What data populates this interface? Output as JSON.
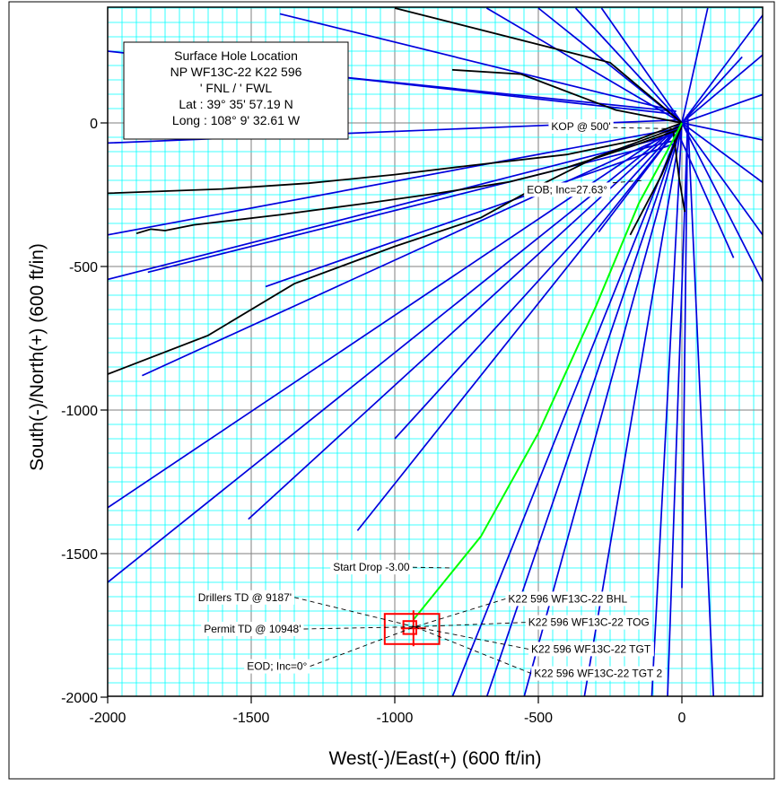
{
  "chart_data": {
    "type": "line",
    "title": "",
    "xlabel": "West(-)/East(+) (600 ft/in)",
    "ylabel": "South(-)/North(+) (600 ft/in)",
    "xlim": [
      -2000,
      280
    ],
    "ylim": [
      -2000,
      400
    ],
    "x_ticks": [
      -2000,
      -1500,
      -1000,
      -500,
      0
    ],
    "y_ticks": [
      -2000,
      -1500,
      -1000,
      -500,
      0
    ],
    "x_tick_labels": [
      "-2000",
      "-1500",
      "-1000",
      "-500",
      "0"
    ],
    "y_tick_labels": [
      "-2000",
      "-1500",
      "-1000",
      "-500",
      "0"
    ],
    "grid": true,
    "grid_color": "#00ffff",
    "offset_well_color": "#0000dd",
    "offset_well_black_color": "#000000",
    "plan_color": "#00ff00",
    "target_color": "#ff0000",
    "info_box": {
      "lines": [
        "Surface Hole Location",
        "NP WF13C-22 K22 596",
        "' FNL / ' FWL",
        "Lat :  39° 35' 57.19 N",
        "Long :  108° 9' 32.61 W"
      ]
    },
    "annotations": [
      {
        "text": "KOP @ 500'",
        "x": -455,
        "y": -25
      },
      {
        "text": "EOB; Inc=27.63°",
        "x": -540,
        "y": -245
      },
      {
        "text": "Start Drop -3.00",
        "x": -1215,
        "y": -1560
      },
      {
        "text": "Drillers TD @ 9187'",
        "x": -1685,
        "y": -1665
      },
      {
        "text": "Permit TD @ 10948'",
        "x": -1665,
        "y": -1775
      },
      {
        "text": "EOD; Inc=0°",
        "x": -1515,
        "y": -1905
      },
      {
        "text": "K22 596 WF13C-22 BHL",
        "x": -605,
        "y": -1670
      },
      {
        "text": "K22 596 WF13C-22 TOG",
        "x": -535,
        "y": -1752
      },
      {
        "text": "K22 596 WF13C-22 TGT",
        "x": -525,
        "y": -1845
      },
      {
        "text": "K22 596 WF13C-22 TGT 2",
        "x": -515,
        "y": -1930
      }
    ],
    "plan_well": {
      "name": "",
      "x": [
        0,
        -20,
        -150,
        -300,
        -500,
        -700,
        -935
      ],
      "y": [
        0,
        -40,
        -280,
        -640,
        -1080,
        -1440,
        -1730
      ]
    },
    "targets": [
      {
        "x": [
          -1035,
          -845
        ],
        "y": [
          -1710,
          -1815
        ]
      },
      {
        "x": [
          -970,
          -925
        ],
        "y": [
          -1735,
          -1780
        ]
      }
    ],
    "offset_wells": [
      {
        "color": "blue",
        "x": [
          0,
          -2000
        ],
        "y": [
          0,
          -1600
        ]
      },
      {
        "color": "blue",
        "x": [
          0,
          -2000
        ],
        "y": [
          0,
          -1340
        ]
      },
      {
        "color": "blue",
        "x": [
          -20,
          -1880
        ],
        "y": [
          -30,
          -880
        ]
      },
      {
        "color": "blue",
        "x": [
          -20,
          -2000
        ],
        "y": [
          -40,
          -545
        ]
      },
      {
        "color": "blue",
        "x": [
          -20,
          -2000
        ],
        "y": [
          -20,
          -390
        ]
      },
      {
        "color": "blue",
        "x": [
          -20,
          -2000
        ],
        "y": [
          10,
          -70
        ]
      },
      {
        "color": "blue",
        "x": [
          -20,
          -2000
        ],
        "y": [
          30,
          250
        ]
      },
      {
        "color": "blue",
        "x": [
          -20,
          -1380
        ],
        "y": [
          40,
          180
        ]
      },
      {
        "color": "blue",
        "x": [
          -20,
          -1400
        ],
        "y": [
          40,
          380
        ]
      },
      {
        "color": "blue",
        "x": [
          -20,
          -1450
        ],
        "y": [
          -70,
          -570
        ]
      },
      {
        "color": "blue",
        "x": [
          -20,
          -1860
        ],
        "y": [
          -60,
          -520
        ]
      },
      {
        "color": "blue",
        "x": [
          0,
          -1000
        ],
        "y": [
          0,
          -1100
        ]
      },
      {
        "color": "blue",
        "x": [
          0,
          -1130
        ],
        "y": [
          0,
          -1420
        ]
      },
      {
        "color": "blue",
        "x": [
          0,
          -1510
        ],
        "y": [
          0,
          -1380
        ]
      },
      {
        "color": "blue",
        "x": [
          0,
          -800
        ],
        "y": [
          0,
          -2000
        ]
      },
      {
        "color": "blue",
        "x": [
          0,
          -680
        ],
        "y": [
          0,
          -2000
        ]
      },
      {
        "color": "blue",
        "x": [
          0,
          -550
        ],
        "y": [
          0,
          -2000
        ]
      },
      {
        "color": "blue",
        "x": [
          0,
          -340
        ],
        "y": [
          0,
          -2000
        ]
      },
      {
        "color": "blue",
        "x": [
          0,
          -105
        ],
        "y": [
          0,
          -2000
        ]
      },
      {
        "color": "blue",
        "x": [
          0,
          -290
        ],
        "y": [
          0,
          -380
        ]
      },
      {
        "color": "blue",
        "x": [
          -20,
          180
        ],
        "y": [
          -20,
          -470
        ]
      },
      {
        "color": "blue",
        "x": [
          0,
          285
        ],
        "y": [
          0,
          -560
        ]
      },
      {
        "color": "blue",
        "x": [
          0,
          285
        ],
        "y": [
          0,
          -395
        ]
      },
      {
        "color": "blue",
        "x": [
          0,
          285
        ],
        "y": [
          0,
          -210
        ]
      },
      {
        "color": "blue",
        "x": [
          0,
          285
        ],
        "y": [
          0,
          -60
        ]
      },
      {
        "color": "blue",
        "x": [
          0,
          285
        ],
        "y": [
          0,
          100
        ]
      },
      {
        "color": "blue",
        "x": [
          0,
          285
        ],
        "y": [
          0,
          240
        ]
      },
      {
        "color": "blue",
        "x": [
          0,
          285
        ],
        "y": [
          0,
          380
        ]
      },
      {
        "color": "blue",
        "x": [
          0,
          90
        ],
        "y": [
          0,
          400
        ]
      },
      {
        "color": "blue",
        "x": [
          0,
          -280
        ],
        "y": [
          0,
          400
        ]
      },
      {
        "color": "blue",
        "x": [
          0,
          -370
        ],
        "y": [
          0,
          400
        ]
      },
      {
        "color": "blue",
        "x": [
          0,
          -500
        ],
        "y": [
          0,
          400
        ]
      },
      {
        "color": "blue",
        "x": [
          0,
          -680
        ],
        "y": [
          0,
          400
        ]
      },
      {
        "color": "blue",
        "x": [
          20,
          110
        ],
        "y": [
          30,
          -2000
        ]
      },
      {
        "color": "blue",
        "x": [
          20,
          0
        ],
        "y": [
          30,
          -1620
        ]
      },
      {
        "color": "blue",
        "x": [
          20,
          -50
        ],
        "y": [
          0,
          -2000
        ]
      },
      {
        "color": "blue",
        "x": [
          0,
          210
        ],
        "y": [
          0,
          230
        ]
      },
      {
        "color": "black",
        "x": [
          0,
          -160,
          -400,
          -750,
          -1000,
          -1300,
          -1600,
          -2000
        ],
        "y": [
          0,
          -60,
          -110,
          -150,
          -180,
          -210,
          -230,
          -245
        ]
      },
      {
        "color": "black",
        "x": [
          0,
          -200,
          -400,
          -600,
          -850,
          -1100,
          -1400,
          -1700,
          -1800,
          -1850,
          -1900
        ],
        "y": [
          -20,
          -90,
          -155,
          -205,
          -245,
          -280,
          -320,
          -355,
          -375,
          -370,
          -385
        ]
      },
      {
        "color": "black",
        "x": [
          0,
          -300,
          -500,
          -700,
          -1000,
          -1350,
          -1650,
          -2000
        ],
        "y": [
          -10,
          -120,
          -220,
          -330,
          -430,
          -560,
          -740,
          -875
        ]
      },
      {
        "color": "black",
        "x": [
          0,
          -230,
          -350,
          -560,
          -800
        ],
        "y": [
          0,
          45,
          90,
          170,
          185
        ]
      },
      {
        "color": "black",
        "x": [
          0,
          -70,
          -180
        ],
        "y": [
          -10,
          -180,
          -390
        ]
      },
      {
        "color": "black",
        "x": [
          -30,
          -10,
          10
        ],
        "y": [
          -30,
          -190,
          -310
        ]
      },
      {
        "color": "black",
        "x": [
          0,
          -250,
          -1000
        ],
        "y": [
          0,
          210,
          400
        ]
      }
    ]
  }
}
